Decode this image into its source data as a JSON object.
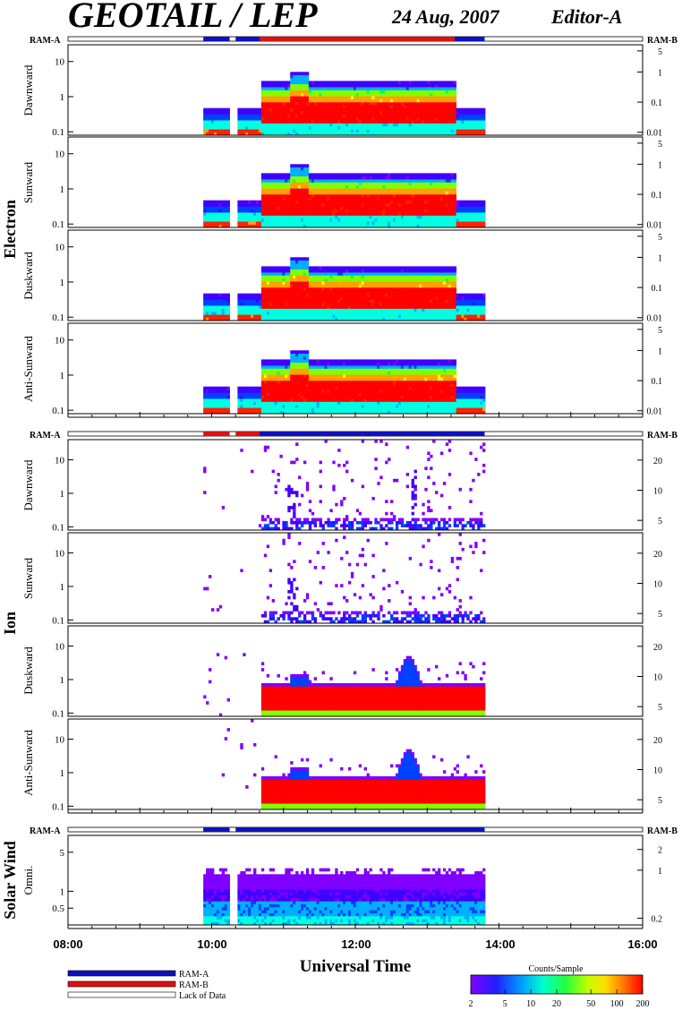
{
  "header": {
    "title": "GEOTAIL / LEP",
    "date": "24 Aug, 2007",
    "editor": "Editor-A"
  },
  "ram_labels": {
    "a": "RAM-A",
    "b": "RAM-B"
  },
  "groups": [
    {
      "name": "Electron",
      "panels": [
        "Dawnward",
        "Sunward",
        "Duskward",
        "Anti-Sunward"
      ]
    },
    {
      "name": "Ion",
      "panels": [
        "Dawnward",
        "Sunward",
        "Duskward",
        "Anti-Sunward"
      ]
    },
    {
      "name": "Solar Wind",
      "panels": [
        "Omni."
      ]
    }
  ],
  "legend": {
    "items": [
      {
        "label": "RAM-A",
        "color": "#1010c0"
      },
      {
        "label": "RAM-B",
        "color": "#e01010"
      },
      {
        "label": "Lack of Data",
        "color": "#ffffff"
      }
    ],
    "colorbar_title": "Counts/Sample",
    "colorbar_ticks": [
      "2",
      "5",
      "10",
      "20",
      "50",
      "100",
      "200"
    ]
  },
  "colors": {
    "ram_a": "#1010c0",
    "ram_b": "#e01010",
    "colormap": [
      "#8000ff",
      "#4000ff",
      "#0040ff",
      "#00b0ff",
      "#00ffe0",
      "#00ff60",
      "#80ff00",
      "#ffff00",
      "#ffa000",
      "#ff2000",
      "#ff0000"
    ]
  },
  "chart_data": {
    "type": "heatmap",
    "xlabel": "Universal Time",
    "xlim": [
      "08:00",
      "16:00"
    ],
    "x_tick_labels": [
      "08:00",
      "10:00",
      "12:00",
      "14:00",
      "16:00"
    ],
    "data_window": {
      "start": "09:53",
      "end": "13:48"
    },
    "data_gap": {
      "start": "10:15",
      "end": "10:20"
    },
    "high_flux_window": {
      "start": "10:40",
      "end": "13:23"
    },
    "colorbar": {
      "label": "Counts/Sample",
      "min": 2,
      "max": 200,
      "scale": "log",
      "ticks": [
        2,
        5,
        10,
        20,
        50,
        100,
        200
      ]
    },
    "electron": {
      "left_axis": {
        "ticks": [
          "10",
          "1",
          "0.1"
        ],
        "values": [
          10,
          1,
          0.1
        ],
        "scale": "log",
        "ylim": [
          0.08,
          30
        ]
      },
      "right_axis": {
        "ticks": [
          "5",
          "1",
          "0.1",
          "0.01"
        ],
        "values": [
          5,
          1,
          0.1,
          0.01
        ],
        "scale": "log"
      },
      "ram_bar": [
        {
          "start": "09:53",
          "end": "10:15",
          "mode": "RAM-A"
        },
        {
          "start": "10:20",
          "end": "10:40",
          "mode": "RAM-A"
        },
        {
          "start": "10:40",
          "end": "13:23",
          "mode": "RAM-B"
        },
        {
          "start": "13:23",
          "end": "13:48",
          "mode": "RAM-A"
        }
      ],
      "panels": [
        "Dawnward",
        "Sunward",
        "Duskward",
        "Anti-Sunward"
      ]
    },
    "ion": {
      "left_axis": {
        "ticks": [
          "10",
          "1",
          "0.1"
        ],
        "values": [
          10,
          1,
          0.1
        ],
        "scale": "log",
        "ylim": [
          0.08,
          40
        ]
      },
      "right_axis": {
        "ticks": [
          "20",
          "10",
          "5"
        ],
        "values": [
          20,
          10,
          5
        ],
        "scale": "log"
      },
      "ram_bar": [
        {
          "start": "09:53",
          "end": "10:15",
          "mode": "RAM-B"
        },
        {
          "start": "10:20",
          "end": "10:40",
          "mode": "RAM-B"
        },
        {
          "start": "10:40",
          "end": "13:48",
          "mode": "RAM-A"
        }
      ],
      "panels": [
        "Dawnward",
        "Sunward",
        "Duskward",
        "Anti-Sunward"
      ]
    },
    "solar_wind": {
      "left_axis": {
        "ticks": [
          "5",
          "1",
          "0.5"
        ],
        "values": [
          5,
          1,
          0.5
        ],
        "scale": "log",
        "ylim": [
          0.25,
          10
        ]
      },
      "right_axis": {
        "ticks": [
          "2",
          "1",
          "0.2"
        ],
        "values": [
          2,
          1,
          0.2
        ],
        "scale": "log"
      },
      "ram_bar": [
        {
          "start": "09:53",
          "end": "10:15",
          "mode": "RAM-A"
        },
        {
          "start": "10:20",
          "end": "13:48",
          "mode": "RAM-A"
        }
      ],
      "panels": [
        "Omni."
      ]
    }
  }
}
